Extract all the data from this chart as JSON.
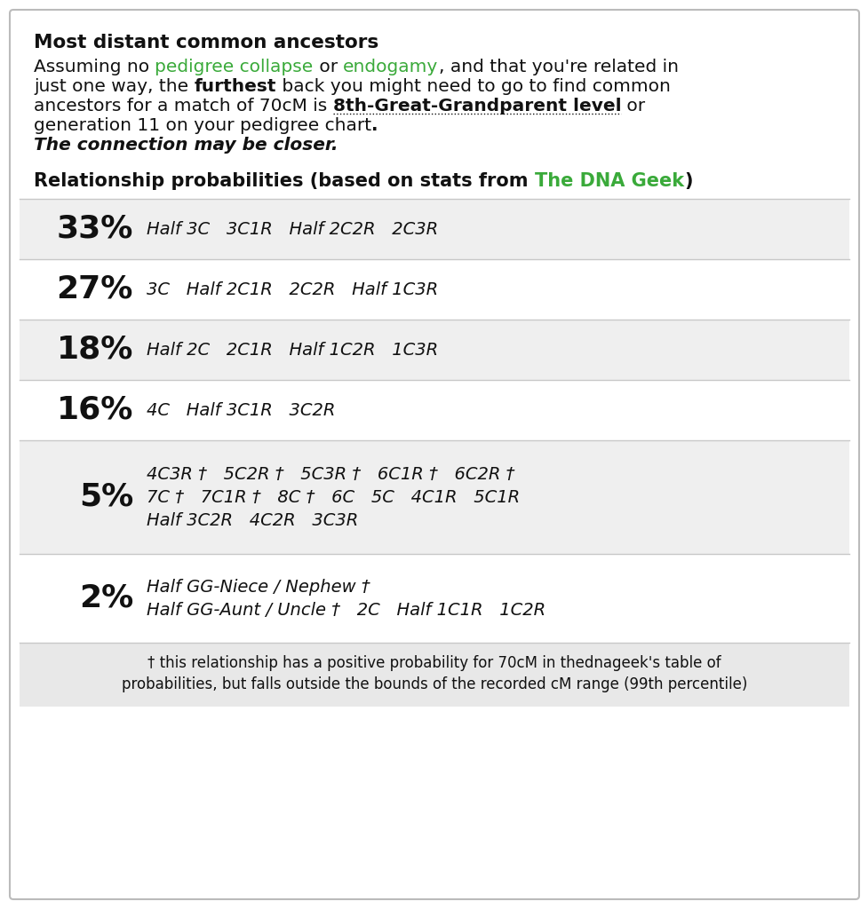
{
  "title": "Most distant common ancestors",
  "bg_color": "#ffffff",
  "border_color": "#bbbbbb",
  "green_color": "#3aaa3a",
  "black_color": "#111111",
  "gray_color": "#555555",
  "footnote_bg": "#e8e8e8",
  "table_bg_gray": "#efefef",
  "table_bg_white": "#ffffff",
  "rows": [
    {
      "pct": "33%",
      "lines": [
        "Half 3C   3C1R   Half 2C2R   2C3R"
      ],
      "bg": "#efefef"
    },
    {
      "pct": "27%",
      "lines": [
        "3C   Half 2C1R   2C2R   Half 1C3R"
      ],
      "bg": "#ffffff"
    },
    {
      "pct": "18%",
      "lines": [
        "Half 2C   2C1R   Half 1C2R   1C3R"
      ],
      "bg": "#efefef"
    },
    {
      "pct": "16%",
      "lines": [
        "4C   Half 3C1R   3C2R"
      ],
      "bg": "#ffffff"
    },
    {
      "pct": "5%",
      "lines": [
        "4C3R †   5C2R †   5C3R †   6C1R †   6C2R †",
        "7C †   7C1R †   8C †   6C   5C   4C1R   5C1R",
        "Half 3C2R   4C2R   3C3R"
      ],
      "bg": "#efefef"
    },
    {
      "pct": "2%",
      "lines": [
        "Half GG-Niece / Nephew †",
        "Half GG-Aunt / Uncle †   2C   Half 1C1R   1C2R"
      ],
      "bg": "#ffffff"
    }
  ],
  "footnote_lines": [
    "† this relationship has a positive probability for 70cM in thednageek's table of",
    "probabilities, but falls outside the bounds of the recorded cM range (99th percentile)"
  ]
}
